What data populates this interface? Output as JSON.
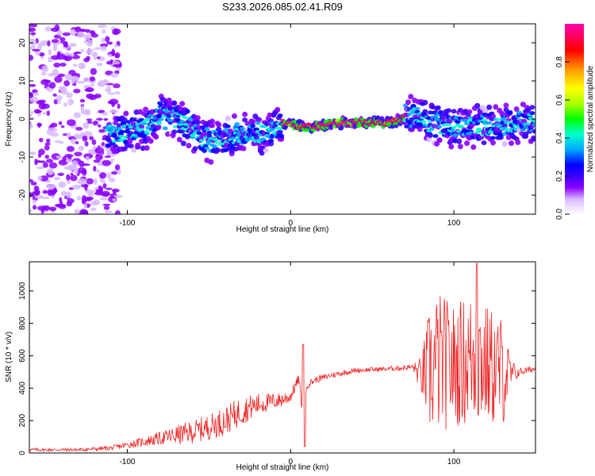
{
  "title": "S233.2026.085.02.41.R09",
  "chart_data": [
    {
      "type": "heatmap",
      "xlabel": "Height of straight line (km)",
      "ylabel": "Frequency (Hz)",
      "xlim": [
        -160,
        150
      ],
      "ylim": [
        -25,
        25
      ],
      "x_ticks": [
        -100,
        0,
        100
      ],
      "y_ticks": [
        -20,
        -10,
        0,
        10,
        20
      ],
      "colorbar": {
        "label": "Normalized spectral amplitude",
        "range": [
          0,
          1
        ],
        "ticks": [
          "0.0",
          "0.2",
          "0.4",
          "0.6",
          "0.8"
        ],
        "colors": [
          "#ffffff",
          "#d8b8ff",
          "#8a00ff",
          "#3a00ff",
          "#0000ff",
          "#00aaff",
          "#00ffcc",
          "#00ff00",
          "#aaff00",
          "#ffff00",
          "#ff9900",
          "#ff0000",
          "#ff0066",
          "#ff00aa"
        ]
      },
      "ridge": {
        "x": [
          -110,
          -90,
          -80,
          -70,
          -60,
          -50,
          -40,
          -30,
          -20,
          -12,
          -5,
          0,
          5,
          15,
          30,
          45,
          60,
          68,
          74,
          78,
          85,
          100,
          120,
          140,
          150
        ],
        "frequency": [
          -4,
          -3,
          1,
          0,
          -3,
          -6,
          -5,
          -4,
          -4,
          -3,
          -1,
          -1,
          -2,
          -2,
          -1,
          -1,
          -1,
          0,
          1,
          2,
          -1,
          -2,
          -2,
          -1,
          -1
        ]
      }
    },
    {
      "type": "line",
      "xlabel": "Height of straight line (km)",
      "ylabel": "SNR (10 * v/v)",
      "xlim": [
        -160,
        150
      ],
      "ylim": [
        0,
        1180
      ],
      "x_ticks": [
        -100,
        0,
        100
      ],
      "y_ticks": [
        0,
        200,
        400,
        600,
        800,
        1000
      ],
      "series": [
        {
          "name": "SNR",
          "color": "#ee2222",
          "envelope": {
            "x": [
              -160,
              -130,
              -110,
              -100,
              -90,
              -80,
              -70,
              -60,
              -50,
              -40,
              -30,
              -20,
              -10,
              -5,
              0,
              5,
              8,
              10,
              15,
              25,
              40,
              60,
              75,
              80,
              85,
              90,
              100,
              110,
              115,
              120,
              130,
              135,
              140,
              150
            ],
            "y": [
              20,
              20,
              30,
              50,
              70,
              90,
              110,
              130,
              160,
              200,
              260,
              300,
              320,
              330,
              350,
              460,
              200,
              420,
              450,
              480,
              510,
              520,
              530,
              480,
              500,
              560,
              540,
              580,
              600,
              540,
              500,
              480,
              500,
              520
            ],
            "spread": [
              10,
              10,
              15,
              20,
              30,
              40,
              60,
              70,
              80,
              90,
              90,
              70,
              50,
              50,
              40,
              30,
              20,
              25,
              20,
              20,
              15,
              15,
              20,
              120,
              400,
              450,
              380,
              420,
              450,
              380,
              350,
              100,
              25,
              20
            ]
          }
        }
      ]
    }
  ]
}
